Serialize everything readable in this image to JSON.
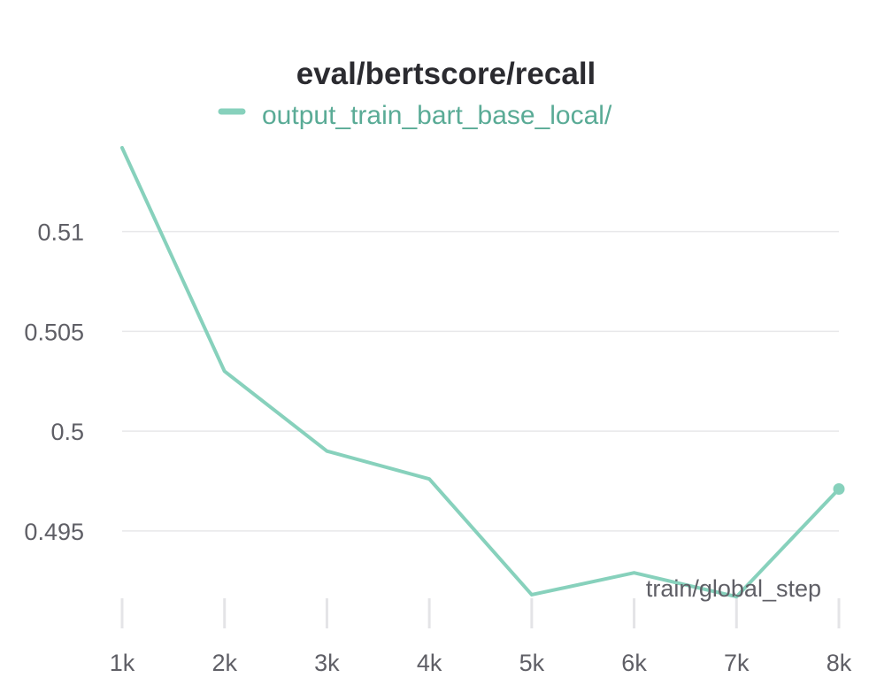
{
  "chart_data": {
    "type": "line",
    "title": "eval/bertscore/recall",
    "xlabel": "train/global_step",
    "ylabel": "",
    "x_ticks": [
      1000,
      2000,
      3000,
      4000,
      5000,
      6000,
      7000,
      8000
    ],
    "x_tick_labels": [
      "1k",
      "2k",
      "3k",
      "4k",
      "5k",
      "6k",
      "7k",
      "8k"
    ],
    "y_ticks": [
      0.495,
      0.5,
      0.505,
      0.51
    ],
    "y_tick_labels": [
      "0.495",
      "0.5",
      "0.505",
      "0.51"
    ],
    "xlim": [
      1000,
      8000
    ],
    "ylim": [
      0.491,
      0.5142
    ],
    "grid": true,
    "legend_position": "top",
    "series": [
      {
        "name": "output_train_bart_base_local/",
        "color": "#87d1bc",
        "x": [
          1000,
          2000,
          3000,
          4000,
          5000,
          6000,
          7000,
          8000
        ],
        "y": [
          0.5142,
          0.503,
          0.499,
          0.4976,
          0.4918,
          0.4929,
          0.4917,
          0.4971
        ]
      }
    ]
  }
}
